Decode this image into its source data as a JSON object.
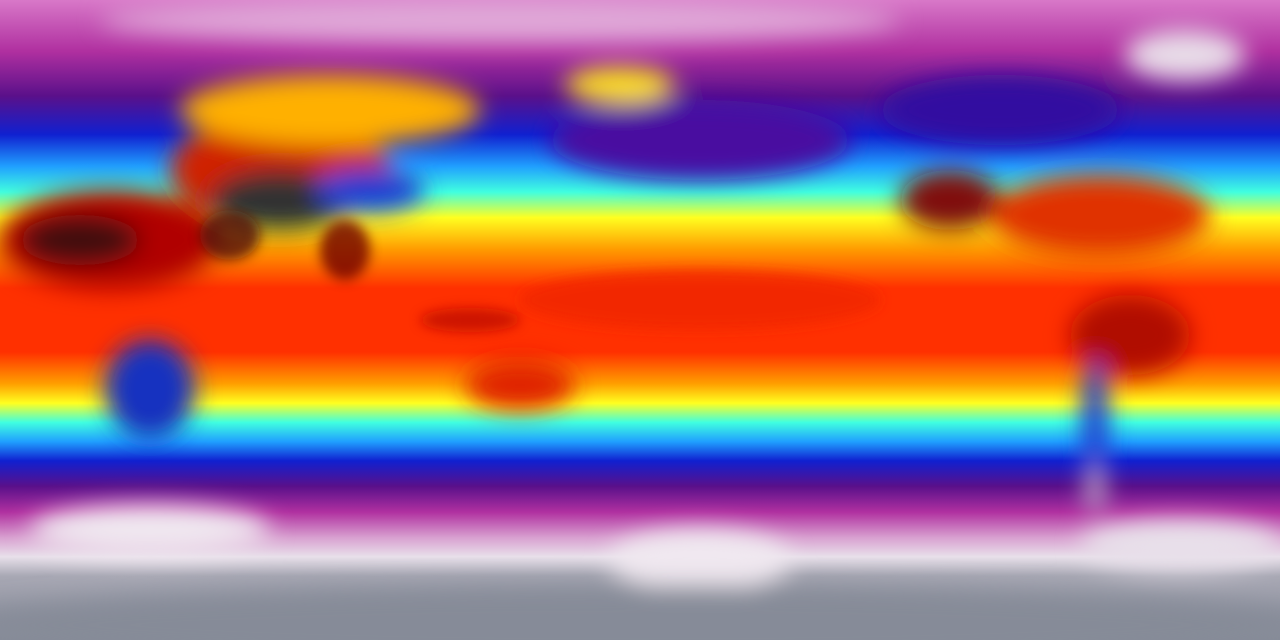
{
  "map": {
    "projection": "equirectangular",
    "colormap": [
      "#8a8e9a",
      "#e8e0ea",
      "#c040b0",
      "#70108a",
      "#1020d0",
      "#20a0ff",
      "#40ffe0",
      "#ffff20",
      "#ffa000",
      "#ff3000",
      "#c00000",
      "#500000",
      "#303030"
    ]
  }
}
